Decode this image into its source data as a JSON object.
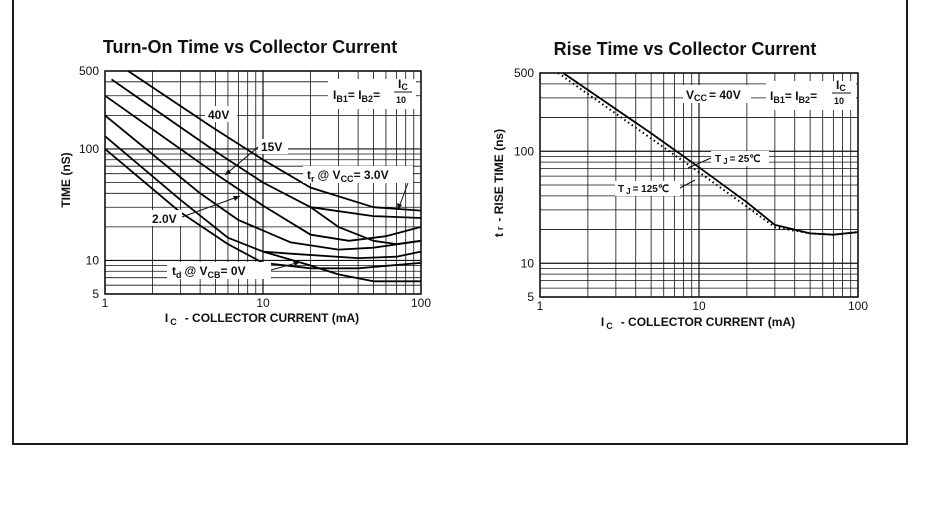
{
  "chart_data": [
    {
      "type": "line",
      "title": "Turn-On Time vs Collector Current",
      "xlabel_main": "I",
      "xlabel_sub": "C",
      "xlabel_rest": "- COLLECTOR CURRENT (mA)",
      "ylabel": "TIME (nS)",
      "x_scale": "log",
      "y_scale": "log",
      "xlim": [
        1,
        100
      ],
      "ylim": [
        5,
        500
      ],
      "x_ticks": [
        1,
        10,
        100
      ],
      "x_tick_labels": [
        "1",
        "10",
        "100"
      ],
      "y_ticks": [
        5,
        10,
        100,
        500
      ],
      "y_tick_labels": [
        "5",
        "10",
        "100",
        "500"
      ],
      "grid": true,
      "legend": "none",
      "annotations": {
        "ib": "I",
        "ib_sub1": "B1",
        "eq1": "= I",
        "ib_sub2": "B2",
        "eq2": "=",
        "frac_num": "I",
        "frac_num_sub": "C",
        "frac_den": "10",
        "v40": "40V",
        "v15": "15V",
        "v2": "2.0V",
        "tr_pre": "t",
        "tr_sub": "r",
        "tr_mid": "@ V",
        "tr_vsub": "CC",
        "tr_post": "= 3.0V",
        "td_pre": "t",
        "td_sub": "d",
        "td_mid": "@ V",
        "td_vsub": "CB",
        "td_post": "= 0V"
      },
      "series": [
        {
          "x": [
            1.4,
            5,
            10,
            20,
            50,
            100
          ],
          "y": [
            500,
            150,
            80,
            45,
            30,
            28
          ],
          "style": "solid"
        },
        {
          "x": [
            1.1,
            5,
            10,
            20,
            50,
            100
          ],
          "y": [
            420,
            95,
            50,
            30,
            25,
            24
          ],
          "style": "solid"
        },
        {
          "x": [
            1,
            5,
            10,
            20,
            35,
            60,
            100
          ],
          "y": [
            300,
            60,
            31,
            17,
            15,
            16.5,
            20
          ],
          "style": "solid"
        },
        {
          "x": [
            1,
            4,
            7,
            15,
            30,
            50,
            100
          ],
          "y": [
            200,
            40,
            23,
            14.5,
            12.5,
            13,
            15
          ],
          "style": "solid"
        },
        {
          "x": [
            1,
            3,
            6,
            10,
            15,
            40,
            70,
            100
          ],
          "y": [
            130,
            35,
            16,
            12,
            11.5,
            10.5,
            10.8,
            12
          ],
          "style": "solid"
        },
        {
          "x": [
            1,
            3,
            6,
            10,
            20,
            40,
            100
          ],
          "y": [
            100,
            27,
            14,
            9.5,
            8.5,
            8.5,
            9.5
          ],
          "style": "solid"
        },
        {
          "x": [
            10,
            20,
            30,
            50,
            100
          ],
          "y": [
            12,
            9,
            7.5,
            6.5,
            6.5
          ],
          "style": "solid"
        },
        {
          "x": [
            20,
            30,
            50,
            70,
            100
          ],
          "y": [
            30,
            20,
            15,
            14,
            15
          ],
          "style": "solid"
        }
      ]
    },
    {
      "type": "line",
      "title": "Rise Time vs Collector Current",
      "xlabel_main": "I",
      "xlabel_sub": "C",
      "xlabel_rest": "- COLLECTOR CURRENT (mA)",
      "ylabel_main": "t",
      "ylabel_sub": "r",
      "ylabel_rest": "- RISE TIME (ns)",
      "x_scale": "log",
      "y_scale": "log",
      "xlim": [
        1,
        100
      ],
      "ylim": [
        5,
        500
      ],
      "x_ticks": [
        1,
        10,
        100
      ],
      "x_tick_labels": [
        "1",
        "10",
        "100"
      ],
      "y_ticks": [
        5,
        10,
        100,
        500
      ],
      "y_tick_labels": [
        "5",
        "10",
        "100",
        "500"
      ],
      "grid": true,
      "legend": "none",
      "annotations": {
        "vcc_pre": "V",
        "vcc_sub": "CC",
        "vcc_post": "= 40V",
        "ib": "I",
        "ib_sub1": "B1",
        "eq1": "= I",
        "ib_sub2": "B2",
        "eq2": "=",
        "frac_num": "I",
        "frac_num_sub": "C",
        "frac_den": "10",
        "tj25_pre": "T",
        "tj25_sub": "J",
        "tj25_post": "= 25℃",
        "tj125_pre": "T",
        "tj125_sub": "J",
        "tj125_post": "= 125℃"
      },
      "series": [
        {
          "name": "T J = 25℃",
          "x": [
            1.4,
            5,
            10,
            20,
            30,
            50,
            70,
            100
          ],
          "y": [
            500,
            145,
            72,
            35,
            22,
            18.5,
            18,
            19
          ],
          "style": "solid"
        },
        {
          "name": "T J = 125℃",
          "x": [
            1.3,
            5,
            10,
            20,
            30,
            50,
            70,
            100
          ],
          "y": [
            500,
            130,
            65,
            32,
            21,
            18.5,
            18,
            19
          ],
          "style": "dotted"
        }
      ]
    }
  ]
}
